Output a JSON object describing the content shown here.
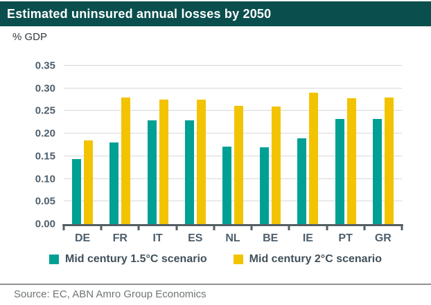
{
  "title": "Estimated uninsured annual losses by 2050",
  "axis_unit_label": "% GDP",
  "source": "Source: EC, ABN Amro Group Economics",
  "colors": {
    "title_bg": "#0a4e4d",
    "title_text": "#ffffff",
    "accent_teal": "#00a095",
    "accent_yellow": "#f2c300",
    "axis": "#545e64",
    "grid": "#d8d8d8",
    "label_text": "#4d5e6c",
    "legend_text": "#41505a",
    "divider": "#919191",
    "source_text": "#6f7477"
  },
  "chart_data": {
    "type": "bar",
    "title": "Estimated uninsured annual losses by 2050",
    "ylabel": "% GDP",
    "xlabel": "",
    "ylim": [
      0,
      0.35
    ],
    "ytick_step": 0.05,
    "yticks": [
      "0.00",
      "0.05",
      "0.10",
      "0.15",
      "0.20",
      "0.25",
      "0.30",
      "0.35"
    ],
    "grid": true,
    "legend_position": "bottom",
    "categories": [
      "DE",
      "FR",
      "IT",
      "ES",
      "NL",
      "BE",
      "IE",
      "PT",
      "GR"
    ],
    "series": [
      {
        "name": "Mid century 1.5°C scenario",
        "color": "#00a095",
        "values": [
          0.143,
          0.181,
          0.23,
          0.23,
          0.171,
          0.169,
          0.189,
          0.232,
          0.232
        ]
      },
      {
        "name": "Mid century 2°C scenario",
        "color": "#f2c300",
        "values": [
          0.185,
          0.279,
          0.275,
          0.275,
          0.262,
          0.26,
          0.29,
          0.278,
          0.279
        ]
      }
    ]
  }
}
